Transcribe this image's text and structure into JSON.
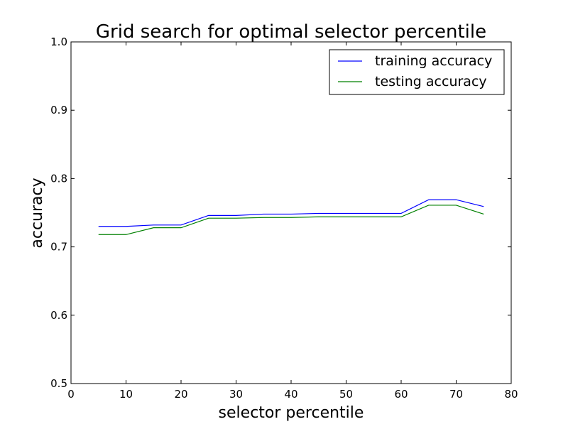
{
  "chart_data": {
    "type": "line",
    "title": "Grid search for optimal selector percentile",
    "xlabel": "selector percentile",
    "ylabel": "accuracy",
    "xlim": [
      0,
      80
    ],
    "ylim": [
      0.5,
      1.0
    ],
    "xticks": [
      0,
      10,
      20,
      30,
      40,
      50,
      60,
      70,
      80
    ],
    "yticks": [
      0.5,
      0.6,
      0.7,
      0.8,
      0.9,
      1.0
    ],
    "xtick_labels": [
      "0",
      "10",
      "20",
      "30",
      "40",
      "50",
      "60",
      "70",
      "80"
    ],
    "ytick_labels": [
      "0.5",
      "0.6",
      "0.7",
      "0.8",
      "0.9",
      "1.0"
    ],
    "grid": false,
    "legend_position": "upper right",
    "x": [
      5,
      10,
      15,
      20,
      25,
      30,
      35,
      40,
      45,
      50,
      55,
      60,
      65,
      70,
      75
    ],
    "series": [
      {
        "name": "training accuracy",
        "color": "#0000ff",
        "values": [
          0.73,
          0.73,
          0.732,
          0.732,
          0.746,
          0.746,
          0.748,
          0.748,
          0.749,
          0.749,
          0.749,
          0.749,
          0.769,
          0.769,
          0.759
        ]
      },
      {
        "name": "testing accuracy",
        "color": "#008000",
        "values": [
          0.718,
          0.718,
          0.728,
          0.728,
          0.742,
          0.742,
          0.743,
          0.743,
          0.744,
          0.744,
          0.744,
          0.744,
          0.761,
          0.761,
          0.748
        ]
      }
    ]
  }
}
